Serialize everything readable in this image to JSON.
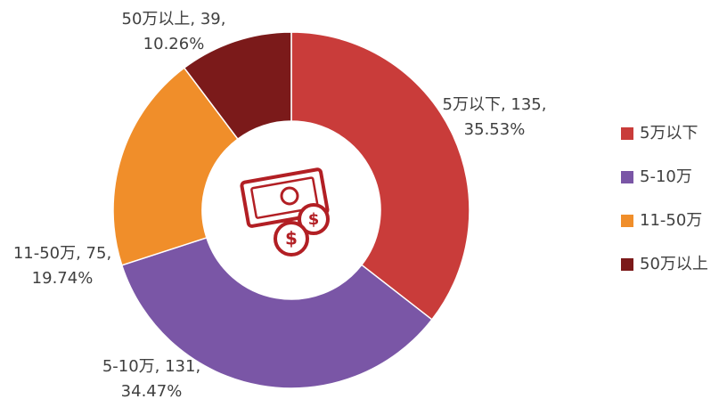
{
  "chart_data": {
    "type": "donut",
    "categories": [
      "5万以下",
      "5-10万",
      "11-50万",
      "50万以上"
    ],
    "values": [
      135,
      131,
      75,
      39
    ],
    "value_labels": [
      [
        "5万以下, 135,",
        "35.53%"
      ],
      [
        "5-10万, 131,",
        "34.47%"
      ],
      [
        "11-50万, 75,",
        "19.74%"
      ],
      [
        "50万以上, 39,",
        "10.26%"
      ]
    ],
    "colors": [
      "#c93c3a",
      "#7a56a6",
      "#f08e2a",
      "#7b1a1a"
    ],
    "legend": "right"
  }
}
